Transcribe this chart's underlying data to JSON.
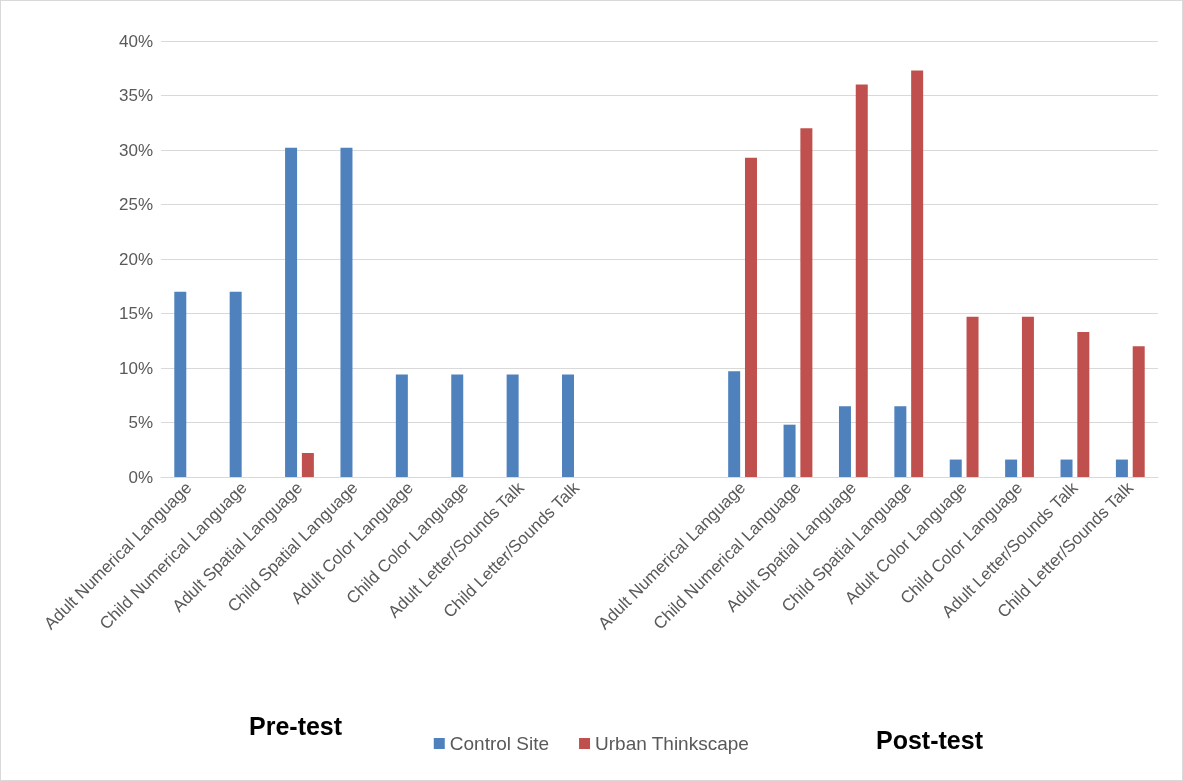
{
  "chart_data": {
    "type": "bar",
    "categories": [
      "Adult Numerical Language",
      "Child Numerical Language",
      "Adult Spatial Language",
      "Child Spatial Language",
      "Adult Color Language",
      "Child Color Language",
      "Adult Letter/Sounds Talk",
      "Child Letter/Sounds Talk",
      null,
      null,
      "Adult Numerical Language",
      "Child Numerical Language",
      "Adult Spatial Language",
      "Child Spatial Language",
      "Adult Color Language",
      "Child Color Language",
      "Adult Letter/Sounds Talk",
      "Child Letter/Sounds Talk"
    ],
    "series": [
      {
        "name": "Control Site",
        "color": "#4f81bd",
        "values": [
          17,
          17,
          30.2,
          30.2,
          9.4,
          9.4,
          9.4,
          9.4,
          null,
          null,
          9.7,
          4.8,
          6.5,
          6.5,
          1.6,
          1.6,
          1.6,
          1.6
        ]
      },
      {
        "name": "Urban Thinkscape",
        "color": "#c0504d",
        "values": [
          null,
          null,
          2.2,
          null,
          null,
          null,
          null,
          null,
          null,
          null,
          29.3,
          32,
          36,
          37.3,
          14.7,
          14.7,
          13.3,
          12
        ]
      }
    ],
    "ylim": [
      0,
      40
    ],
    "yticks": [
      {
        "value": 0,
        "label": "0%"
      },
      {
        "value": 5,
        "label": "5%"
      },
      {
        "value": 10,
        "label": "10%"
      },
      {
        "value": 15,
        "label": "15%"
      },
      {
        "value": 20,
        "label": "20%"
      },
      {
        "value": 25,
        "label": "25%"
      },
      {
        "value": 30,
        "label": "30%"
      },
      {
        "value": 35,
        "label": "35%"
      },
      {
        "value": 40,
        "label": "40%"
      }
    ],
    "grid": "y",
    "legend": "bottom",
    "annotations": [
      "Pre-test",
      "Post-test"
    ]
  }
}
